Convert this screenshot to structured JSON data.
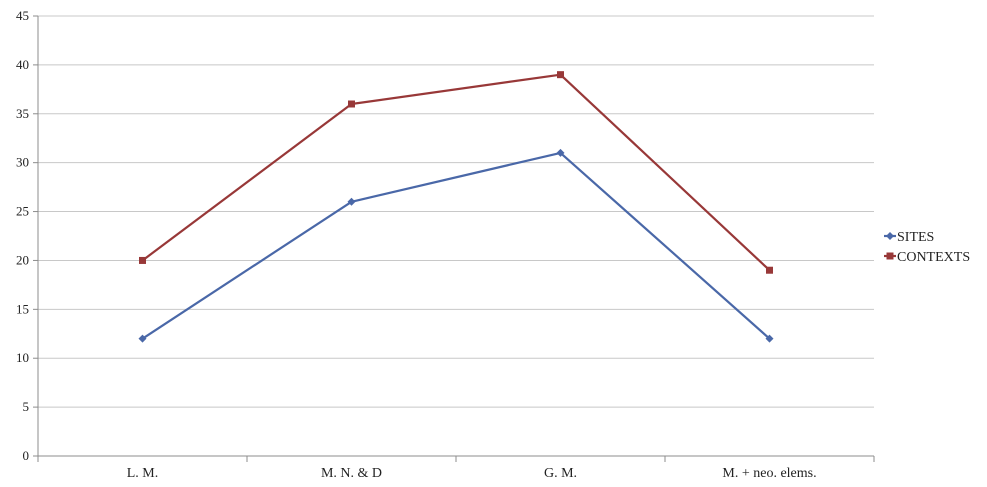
{
  "chart_data": {
    "type": "line",
    "categories": [
      "L. M.",
      "M. N. & D",
      "G. M.",
      "M. + neo. elems."
    ],
    "series": [
      {
        "name": "SITES",
        "values": [
          12,
          26,
          31,
          12
        ],
        "color": "#4a68a8",
        "marker": "diamond"
      },
      {
        "name": "CONTEXTS",
        "values": [
          20,
          36,
          39,
          19
        ],
        "color": "#983838",
        "marker": "square"
      }
    ],
    "ylim": [
      0,
      45
    ],
    "yticks": [
      0,
      5,
      10,
      15,
      20,
      25,
      30,
      35,
      40,
      45
    ],
    "grid": true,
    "legend": "right",
    "title": "",
    "xlabel": "",
    "ylabel": ""
  }
}
